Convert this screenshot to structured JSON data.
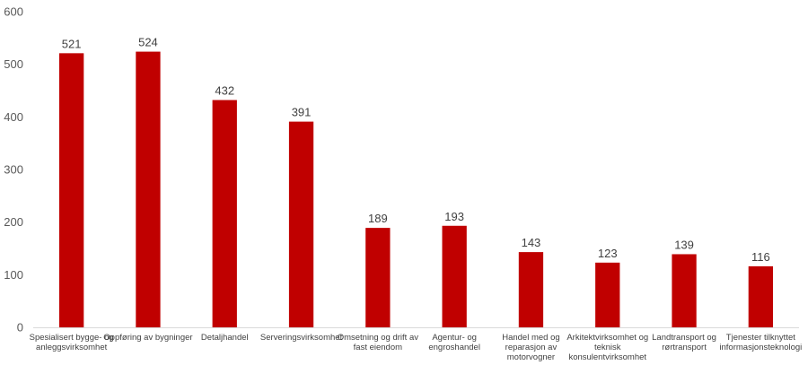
{
  "chart_data": {
    "type": "bar",
    "title": "",
    "xlabel": "",
    "ylabel": "",
    "ylim": [
      0,
      600
    ],
    "yticks": [
      0,
      100,
      200,
      300,
      400,
      500,
      600
    ],
    "grid": false,
    "legend": "none",
    "bar_color": "#C00000",
    "categories": [
      [
        "Spesialisert bygge- og",
        "anleggsvirksomhet"
      ],
      [
        "Oppføring av bygninger"
      ],
      [
        "Detaljhandel"
      ],
      [
        "Serveringsvirksomhet"
      ],
      [
        "Omsetning og drift av",
        "fast eiendom"
      ],
      [
        "Agentur- og",
        "engroshandel"
      ],
      [
        "Handel med og",
        "reparasjon av",
        "motorvogner"
      ],
      [
        "Arkitektvirksomhet og",
        "teknisk",
        "konsulentvirksomhet"
      ],
      [
        "Landtransport og",
        "rørtransport"
      ],
      [
        "Tjenester tilknyttet",
        "informasjonsteknologi"
      ]
    ],
    "values": [
      521,
      524,
      432,
      391,
      189,
      193,
      143,
      123,
      139,
      116
    ]
  }
}
